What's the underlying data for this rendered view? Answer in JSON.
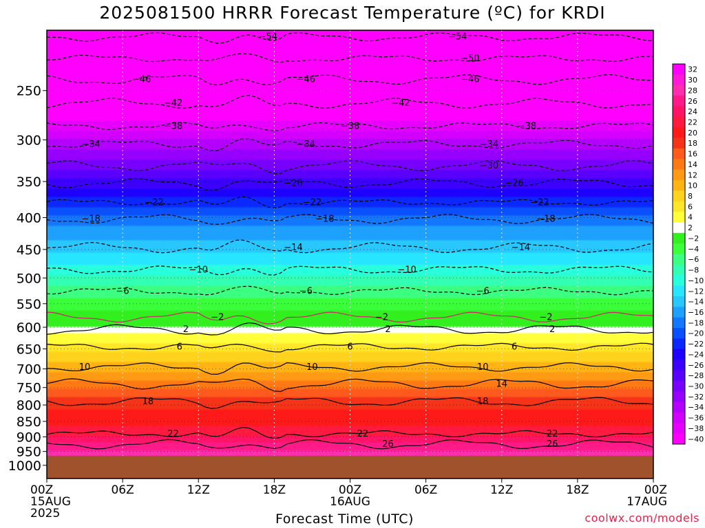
{
  "chart_data": {
    "type": "heatmap",
    "title": "2025081500 HRRR Forecast Temperature (ºC) for KRDI",
    "xlabel": "Forecast Time (UTC)",
    "credit": "coolwx.com/models",
    "yaxis": {
      "ticks": [
        250,
        300,
        350,
        400,
        450,
        500,
        550,
        600,
        650,
        700,
        750,
        800,
        850,
        900,
        950,
        1000
      ],
      "scale": "log",
      "reversed": true,
      "range": [
        200,
        1050
      ]
    },
    "xaxis": {
      "range_hours": [
        0,
        48
      ],
      "ticks": [
        {
          "h": 0,
          "lines": [
            "00Z",
            "15AUG",
            "2025"
          ]
        },
        {
          "h": 6,
          "lines": [
            "06Z"
          ]
        },
        {
          "h": 12,
          "lines": [
            "12Z"
          ]
        },
        {
          "h": 18,
          "lines": [
            "18Z"
          ]
        },
        {
          "h": 24,
          "lines": [
            "00Z",
            "16AUG"
          ]
        },
        {
          "h": 30,
          "lines": [
            "06Z"
          ]
        },
        {
          "h": 36,
          "lines": [
            "12Z"
          ]
        },
        {
          "h": 42,
          "lines": [
            "18Z"
          ]
        },
        {
          "h": 48,
          "lines": [
            "00Z",
            "17AUG"
          ]
        }
      ]
    },
    "colorbar": {
      "labels": [
        "32",
        "30",
        "28",
        "26",
        "24",
        "22",
        "20",
        "18",
        "16",
        "14",
        "12",
        "10",
        "8",
        "6",
        "4",
        "2",
        "−2",
        "−4",
        "−6",
        "−8",
        "−10",
        "−12",
        "−14",
        "−16",
        "−18",
        "−20",
        "−22",
        "−24",
        "−26",
        "−28",
        "−30",
        "−32",
        "−34",
        "−36",
        "−38",
        "−40"
      ],
      "colors": [
        "#ff00ff",
        "#ff1ad9",
        "#ff2db0",
        "#ff1a8a",
        "#ff1466",
        "#ff1a40",
        "#ff1a1a",
        "#f53318",
        "#ff5a1e",
        "#ff7a14",
        "#ff9a14",
        "#ffb414",
        "#ffd21e",
        "#ffe628",
        "#ffff3c",
        "#ffffff",
        "#32f01e",
        "#3cff3c",
        "#3cff82",
        "#32ffb4",
        "#28ffdc",
        "#28e6ff",
        "#28c8ff",
        "#1ea0ff",
        "#1478ff",
        "#0a50ff",
        "#0a28ff",
        "#1e00ff",
        "#3c00ff",
        "#5a00ff",
        "#7800ff",
        "#9600ff",
        "#b400ff",
        "#d200ff",
        "#e600ff",
        "#ff00ff"
      ]
    },
    "contours": [
      {
        "level": -54,
        "p": 205,
        "labels": [
          {
            "h": 17.5
          },
          {
            "h": 32.5
          }
        ]
      },
      {
        "level": -50,
        "p": 222,
        "labels": [
          {
            "h": 33.5
          }
        ]
      },
      {
        "level": -46,
        "p": 240,
        "labels": [
          {
            "h": 7.5
          },
          {
            "h": 20.5
          },
          {
            "h": 33.5
          }
        ]
      },
      {
        "level": -42,
        "p": 262,
        "labels": [
          {
            "h": 10
          },
          {
            "h": 28
          }
        ]
      },
      {
        "level": -38,
        "p": 285,
        "labels": [
          {
            "h": 10
          },
          {
            "h": 24
          },
          {
            "h": 38
          }
        ]
      },
      {
        "level": -34,
        "p": 305,
        "labels": [
          {
            "h": 3.5
          },
          {
            "h": 20.5
          },
          {
            "h": 35
          }
        ]
      },
      {
        "level": -30,
        "p": 330,
        "labels": [
          {
            "h": 35
          }
        ]
      },
      {
        "level": -26,
        "p": 352,
        "labels": [
          {
            "h": 19.5
          },
          {
            "h": 37
          }
        ]
      },
      {
        "level": -22,
        "p": 378,
        "labels": [
          {
            "h": 8.5
          },
          {
            "h": 21
          },
          {
            "h": 39
          }
        ]
      },
      {
        "level": -18,
        "p": 402,
        "labels": [
          {
            "h": 3.5
          },
          {
            "h": 22
          },
          {
            "h": 39.5
          }
        ]
      },
      {
        "level": -14,
        "p": 447,
        "labels": [
          {
            "h": 19.5
          },
          {
            "h": 37.5
          }
        ]
      },
      {
        "level": -10,
        "p": 485,
        "labels": [
          {
            "h": 12
          },
          {
            "h": 28.5
          }
        ]
      },
      {
        "level": -6,
        "p": 525,
        "labels": [
          {
            "h": 6
          },
          {
            "h": 20.5
          },
          {
            "h": 34.5
          }
        ]
      },
      {
        "level": -2,
        "p": 578,
        "labels": [
          {
            "h": 13.5
          },
          {
            "h": 26.5
          },
          {
            "h": 39.5
          }
        ]
      },
      {
        "level": 2,
        "p": 605,
        "labels": [
          {
            "h": 11
          },
          {
            "h": 27
          },
          {
            "h": 40
          }
        ]
      },
      {
        "level": 6,
        "p": 645,
        "labels": [
          {
            "h": 10.5
          },
          {
            "h": 24
          },
          {
            "h": 37
          }
        ]
      },
      {
        "level": 10,
        "p": 695,
        "labels": [
          {
            "h": 3
          },
          {
            "h": 21
          },
          {
            "h": 34.5
          }
        ]
      },
      {
        "level": 14,
        "p": 740,
        "labels": [
          {
            "h": 36
          }
        ]
      },
      {
        "level": 18,
        "p": 790,
        "labels": [
          {
            "h": 8
          },
          {
            "h": 34.5
          }
        ]
      },
      {
        "level": 22,
        "p": 890,
        "labels": [
          {
            "h": 10
          },
          {
            "h": 25
          },
          {
            "h": 40
          }
        ]
      },
      {
        "level": 26,
        "p": 925,
        "labels": [
          {
            "h": 27
          },
          {
            "h": 40
          }
        ]
      }
    ],
    "surface_pressure": 965
  }
}
